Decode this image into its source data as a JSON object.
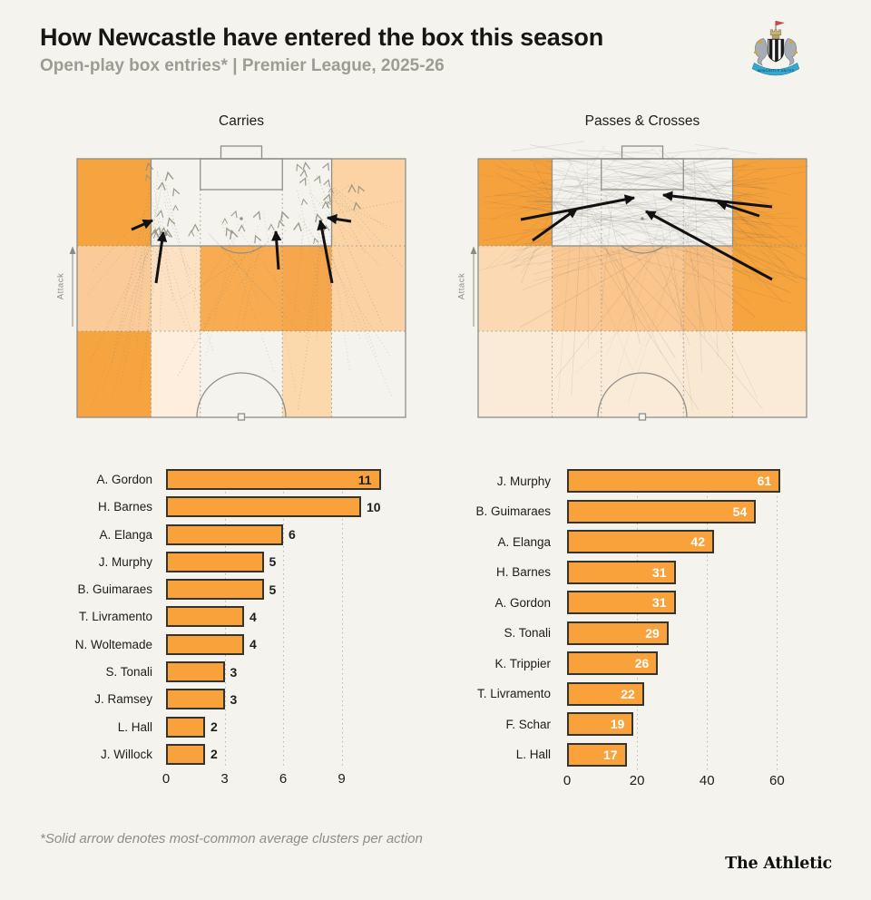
{
  "header": {
    "title": "How Newcastle have entered the box this season",
    "subtitle": "Open-play box entries* | Premier League, 2025-26",
    "crest_alt": "Newcastle United crest"
  },
  "footer": {
    "footnote": "*Solid arrow denotes most-common average clusters per action",
    "brand": "The Athletic"
  },
  "colors": {
    "background": "#F4F3ED",
    "bar_fill": "#F9A23B",
    "bar_border": "#35342F",
    "value_inside_white": "#FFFFFF",
    "value_dark": "#1D1D1B",
    "pitch_line": "#8F8F8A",
    "grid_dot": "#BBB9AE",
    "subtitle_grey": "#9C9C93",
    "arrow_black": "#111111",
    "trace_grey": "#8D8574"
  },
  "pitches": [
    {
      "title": "Carries",
      "attack_label": "Attack",
      "style": "carries",
      "cols": [
        0,
        0.225,
        0.375,
        0.625,
        0.775,
        1
      ],
      "rows": [
        0,
        0.337,
        0.667,
        1
      ],
      "zone_fills": [
        [
          "#F6A440",
          null,
          null,
          null,
          "#FBD3A4"
        ],
        [
          "#FACB98",
          "#FCE2C2",
          "#F8AB50",
          "#F7A74B",
          "#FBD2A3"
        ],
        [
          "#F6A440",
          "#FDEEDE",
          null,
          "#FCD8AD",
          null
        ]
      ],
      "arrows": [
        [
          60,
          78,
          83,
          68
        ],
        [
          87,
          137,
          95,
          81
        ],
        [
          222,
          122,
          219,
          80
        ],
        [
          281,
          137,
          268,
          68
        ],
        [
          302,
          69,
          276,
          65
        ]
      ]
    },
    {
      "title": "Passes & Crosses",
      "attack_label": "Attack",
      "style": "passes",
      "cols": [
        0,
        0.225,
        0.375,
        0.625,
        0.775,
        1
      ],
      "rows": [
        0,
        0.337,
        0.667,
        1
      ],
      "zone_fills": [
        [
          "#F6A23C",
          null,
          null,
          null,
          "#F6A23C"
        ],
        [
          "#FBD9B3",
          "#FAC892",
          "#FAC68D",
          "#F9BE7E",
          "#F5A43E"
        ],
        [
          "#FAEBD9",
          "#FAEBD9",
          "#FAEBD9",
          "#F9E9D3",
          "#FAEBD9"
        ]
      ],
      "arrows": [
        [
          47,
          67,
          172,
          43
        ],
        [
          60,
          90,
          109,
          55
        ],
        [
          324,
          53,
          204,
          40
        ],
        [
          310,
          63,
          264,
          48
        ],
        [
          324,
          133,
          185,
          58
        ]
      ]
    }
  ],
  "chart_data": [
    {
      "type": "bar",
      "title": "Carries",
      "categories": [
        "A. Gordon",
        "H. Barnes",
        "A. Elanga",
        "J. Murphy",
        "B. Guimaraes",
        "T. Livramento",
        "N. Woltemade",
        "S. Tonali",
        "J. Ramsey",
        "L. Hall",
        "J. Willock"
      ],
      "values": [
        11,
        10,
        6,
        5,
        5,
        4,
        4,
        3,
        3,
        2,
        2
      ],
      "xticks": [
        0,
        3,
        6,
        9
      ],
      "xlim": [
        0,
        12
      ],
      "value_label_style": "outside-dark",
      "grid": "dotted-vertical",
      "legend": "none"
    },
    {
      "type": "bar",
      "title": "Passes & Crosses",
      "categories": [
        "J. Murphy",
        "B. Guimaraes",
        "A. Elanga",
        "H. Barnes",
        "A. Gordon",
        "S. Tonali",
        "K. Trippier",
        "T. Livramento",
        "F. Schar",
        "L. Hall"
      ],
      "values": [
        61,
        54,
        42,
        31,
        31,
        29,
        26,
        22,
        19,
        17
      ],
      "xticks": [
        0,
        20,
        40,
        60
      ],
      "xlim": [
        0,
        62.5
      ],
      "value_label_style": "inside-white",
      "grid": "dotted-vertical",
      "legend": "none"
    }
  ]
}
